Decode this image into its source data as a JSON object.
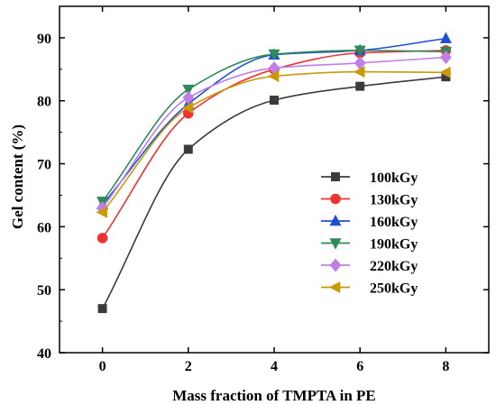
{
  "chart_data": {
    "type": "line",
    "title": "",
    "xlabel": "Mass fraction of TMPTA in PE",
    "ylabel": "Gel content (%)",
    "x": [
      0,
      2,
      4,
      6,
      8
    ],
    "xlim": [
      -1,
      9
    ],
    "ylim": [
      40,
      95
    ],
    "x_ticks": [
      0,
      2,
      4,
      6,
      8
    ],
    "y_ticks": [
      40,
      50,
      60,
      70,
      80,
      90
    ],
    "grid": false,
    "legend_position": "right",
    "series": [
      {
        "name": "100kGy",
        "color": "#3b3b3b",
        "marker": "square",
        "values": [
          47.0,
          72.3,
          80.1,
          82.3,
          83.8
        ]
      },
      {
        "name": "130kGy",
        "color": "#ee3333",
        "marker": "circle",
        "values": [
          58.2,
          78.0,
          85.0,
          87.6,
          88.0
        ]
      },
      {
        "name": "160kGy",
        "color": "#1f4fd8",
        "marker": "triangle-up",
        "values": [
          63.5,
          79.5,
          87.3,
          88.0,
          89.9
        ]
      },
      {
        "name": "190kGy",
        "color": "#2e8b57",
        "marker": "triangle-down",
        "values": [
          64.0,
          81.8,
          87.4,
          88.0,
          87.8
        ]
      },
      {
        "name": "220kGy",
        "color": "#bf7fe6",
        "marker": "diamond",
        "values": [
          63.0,
          80.5,
          85.2,
          86.0,
          86.9
        ]
      },
      {
        "name": "250kGy",
        "color": "#c79a06",
        "marker": "triangle-left",
        "values": [
          62.3,
          78.9,
          83.9,
          84.6,
          84.5
        ]
      }
    ]
  }
}
